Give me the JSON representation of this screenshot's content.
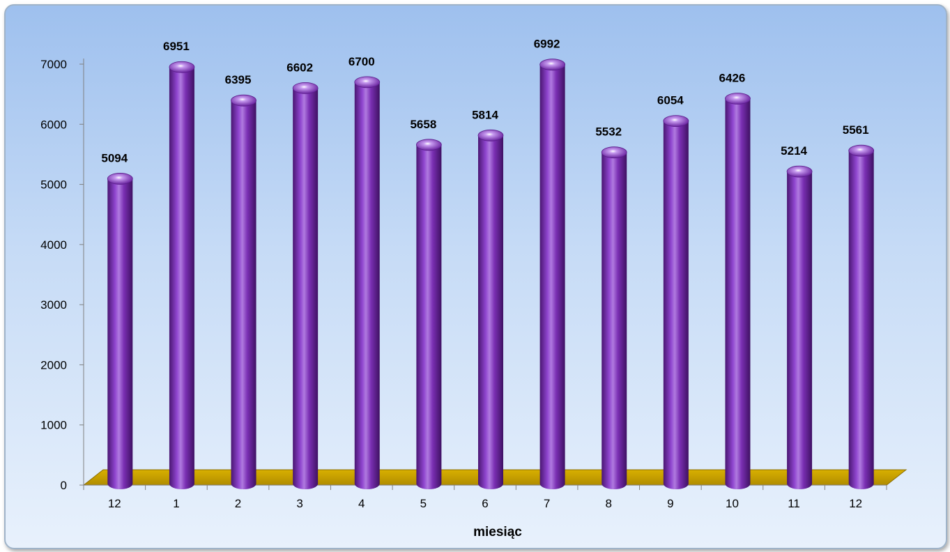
{
  "chart_data": {
    "type": "bar",
    "categories": [
      "12",
      "1",
      "2",
      "3",
      "4",
      "5",
      "6",
      "7",
      "8",
      "9",
      "10",
      "11",
      "12"
    ],
    "values": [
      5094,
      6951,
      6395,
      6602,
      6700,
      5658,
      5814,
      6992,
      5532,
      6054,
      6426,
      5214,
      5561
    ],
    "xlabel": "miesiąc",
    "ylabel": "",
    "ylim": [
      0,
      7000
    ],
    "yticks": [
      0,
      1000,
      2000,
      3000,
      4000,
      5000,
      6000,
      7000
    ],
    "data_labels": true,
    "grid": false,
    "legend": "none",
    "colors": {
      "bar": "#7a2fb3",
      "bar_light": "#b07ae0",
      "bar_dark": "#4a1672",
      "floor": "#c8a000",
      "floor_edge": "#8a6d00"
    }
  }
}
